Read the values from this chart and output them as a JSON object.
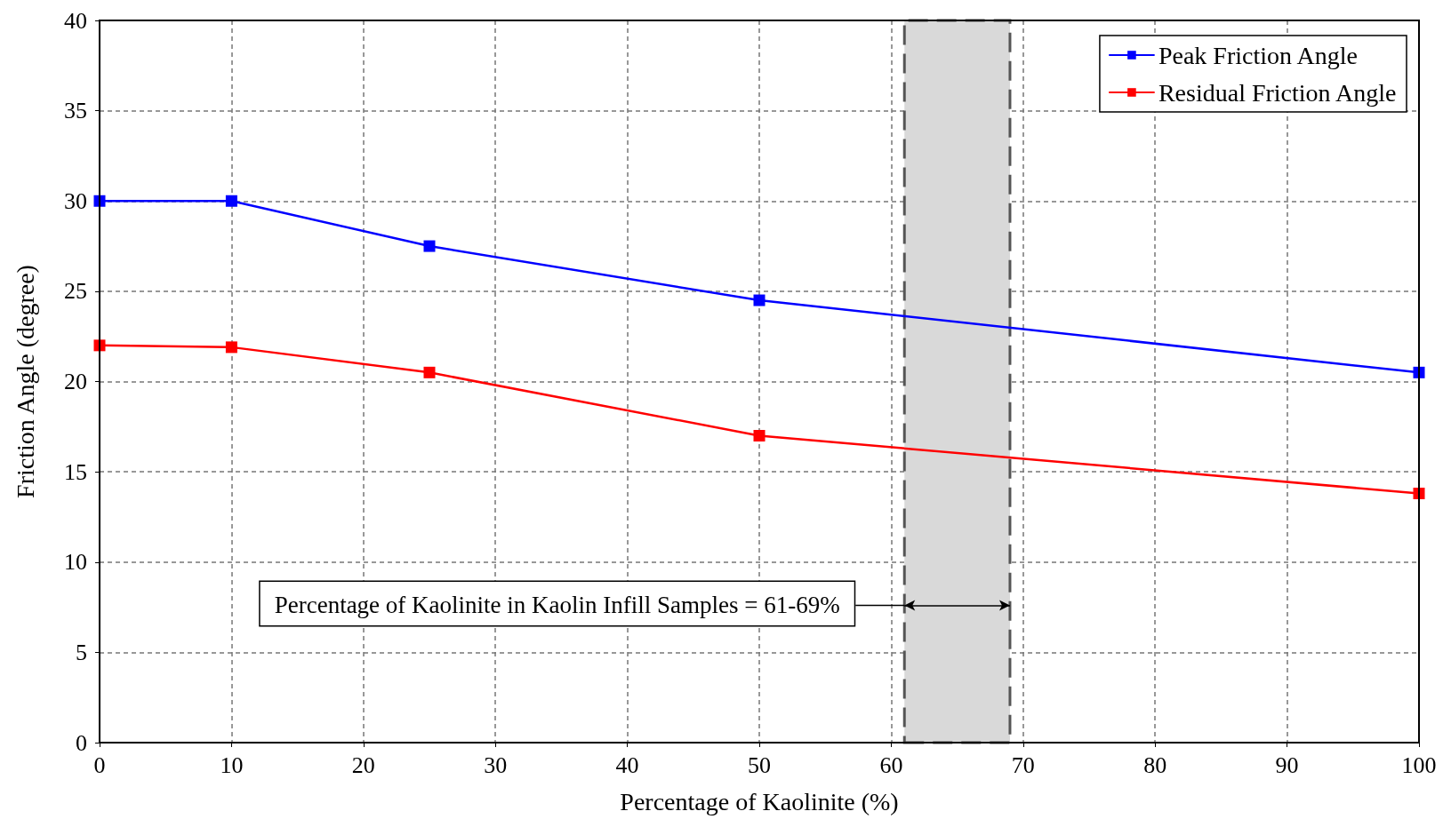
{
  "chart_data": {
    "type": "line",
    "xlabel": "Percentage of Kaolinite (%)",
    "ylabel": "Friction Angle (degree)",
    "x": [
      0,
      10,
      25,
      50,
      100
    ],
    "series": [
      {
        "name": "Peak Friction Angle",
        "color": "#0000ff",
        "values": [
          30,
          30,
          27.5,
          24.5,
          20.5
        ]
      },
      {
        "name": "Residual Friction Angle",
        "color": "#ff0000",
        "values": [
          22,
          21.9,
          20.5,
          17,
          13.8
        ]
      }
    ],
    "xlim": [
      0,
      100
    ],
    "xticks": [
      0,
      10,
      20,
      30,
      40,
      50,
      60,
      70,
      80,
      90,
      100
    ],
    "ylim": [
      0,
      40
    ],
    "yticks": [
      0,
      5,
      10,
      15,
      20,
      25,
      30,
      35,
      40
    ],
    "bands": [
      {
        "axis": "x",
        "from": 61,
        "to": 69,
        "label": "Percentage of Kaolinite in Kaolin Infill Samples = 61-69%",
        "color": "#d9d9d9"
      }
    ],
    "grid": true,
    "legend": "top right",
    "marker": "square",
    "line_style": "solid"
  }
}
